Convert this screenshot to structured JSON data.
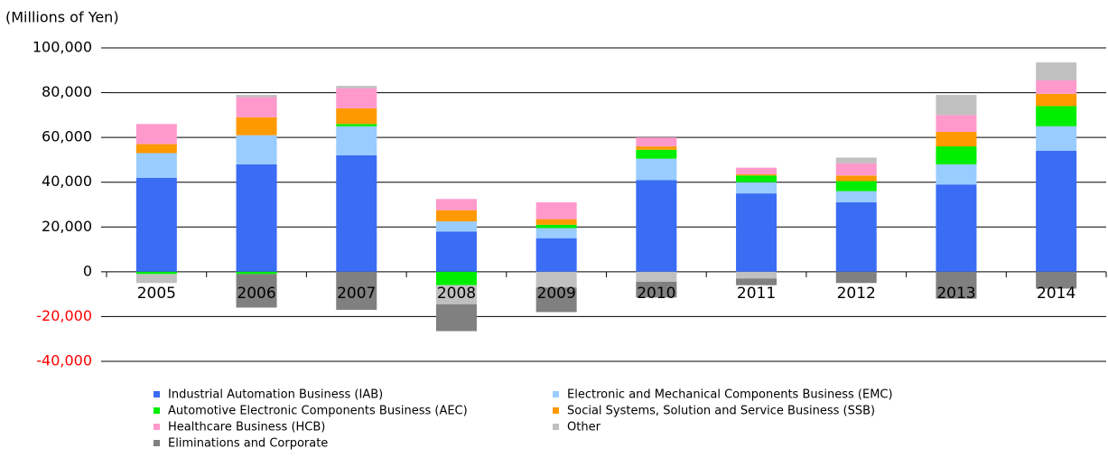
{
  "chart_data": {
    "type": "bar",
    "stacked": true,
    "ylabel": "(Millions of  Yen)",
    "categories": [
      "2005",
      "2006",
      "2007",
      "2008",
      "2009",
      "2010",
      "2011",
      "2012",
      "2013",
      "2014"
    ],
    "series": [
      {
        "name": "Industrial Automation Business (IAB)",
        "color": "#3a6cf4",
        "values": [
          42000,
          48000,
          52000,
          18000,
          15000,
          41000,
          35000,
          31000,
          39000,
          54000
        ]
      },
      {
        "name": "Electronic and Mechanical Components Business (EMC)",
        "color": "#99ccff",
        "values": [
          11000,
          13000,
          13000,
          4500,
          4500,
          9500,
          5000,
          5000,
          9000,
          11000
        ]
      },
      {
        "name": "Automotive Electronic Components Business (AEC)",
        "color": "#00ee00",
        "values": [
          -1000,
          -1000,
          1000,
          -6000,
          1500,
          4000,
          3000,
          4500,
          8000,
          9000
        ]
      },
      {
        "name": "Social Systems, Solution and Service Business (SSB)",
        "color": "#ff9900",
        "values": [
          4000,
          8000,
          7000,
          5000,
          2500,
          1500,
          500,
          2500,
          6500,
          5500
        ]
      },
      {
        "name": "Healthcare Business (HCB)",
        "color": "#ff99cc",
        "values": [
          9000,
          9000,
          9000,
          5000,
          7500,
          4000,
          3000,
          5500,
          7500,
          6000
        ]
      },
      {
        "name": "Other",
        "color": "#c0c0c0",
        "values": [
          -4000,
          1000,
          1000,
          -8500,
          -7000,
          -4500,
          -3000,
          2500,
          9000,
          8000
        ]
      },
      {
        "name": "Eliminations and Corporate",
        "color": "#808080",
        "values": [
          0,
          -15000,
          -17000,
          -12000,
          -11000,
          -7000,
          -3000,
          -5000,
          -12000,
          -7500
        ]
      }
    ],
    "ylim": [
      -40000,
      100000
    ],
    "yticks": [
      {
        "value": -40000,
        "label": "-40,000"
      },
      {
        "value": -20000,
        "label": "-20,000"
      },
      0,
      {
        "value": 20000,
        "label": "20,000"
      },
      {
        "value": 40000,
        "label": "40,000"
      },
      {
        "value": 60000,
        "label": "60,000"
      },
      {
        "value": 80000,
        "label": "80,000"
      },
      {
        "value": 100000,
        "label": "100,000"
      }
    ],
    "grid": true,
    "negative_tick_color": "#ff0000",
    "legend": "bottom"
  }
}
